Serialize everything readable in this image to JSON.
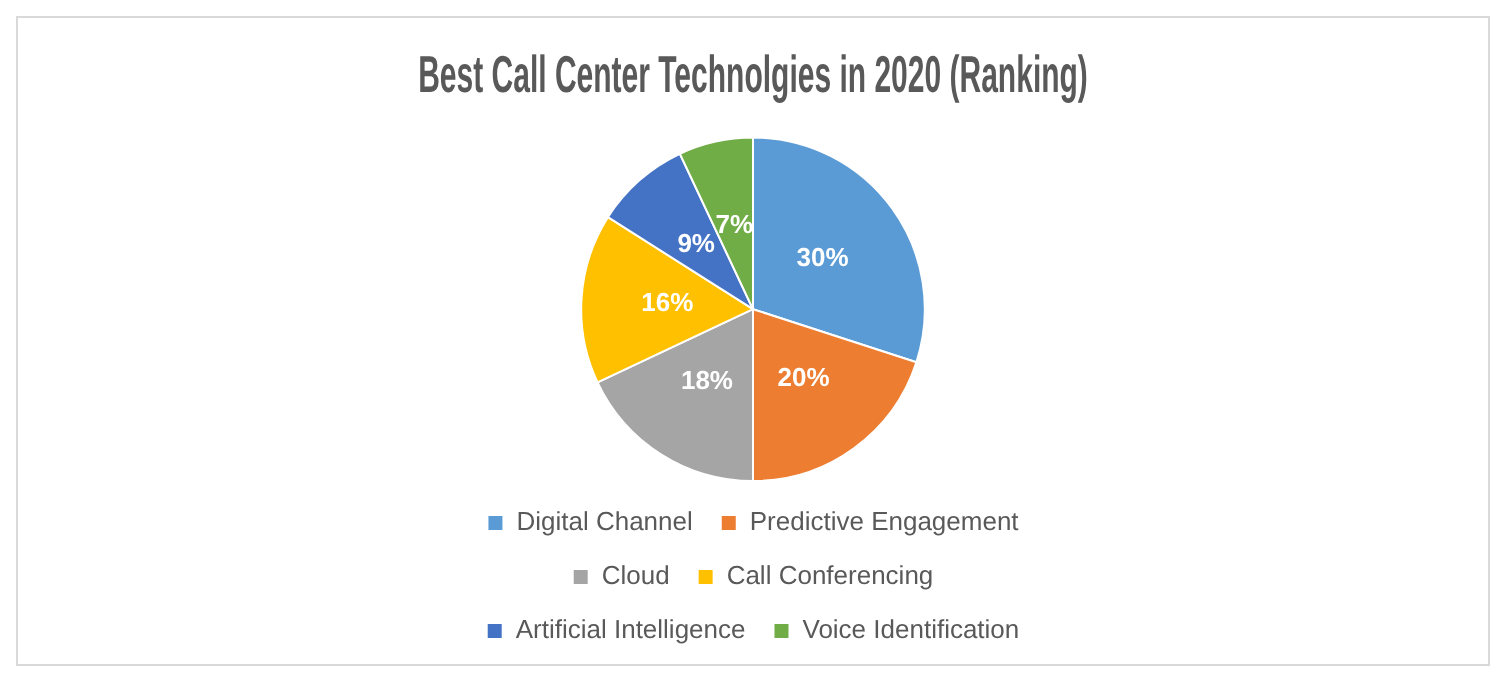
{
  "chart_data": {
    "type": "pie",
    "title": "Best Call Center Technolgies in 2020 (Ranking)",
    "categories": [
      "Digital Channel",
      "Predictive Engagement",
      "Cloud",
      "Call Conferencing",
      "Artificial Intelligence",
      "Voice Identification"
    ],
    "values": [
      30,
      20,
      18,
      16,
      9,
      7
    ],
    "value_labels": [
      "30%",
      "20%",
      "18%",
      "16%",
      "9%",
      "7%"
    ],
    "colors": [
      "#5b9bd5",
      "#ed7d31",
      "#a5a5a5",
      "#ffc000",
      "#4472c4",
      "#70ad47"
    ],
    "legend": "bottom"
  }
}
